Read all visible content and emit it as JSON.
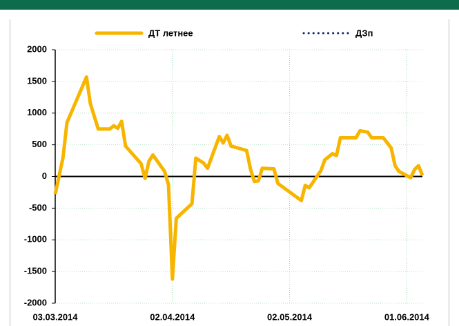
{
  "chart_data": {
    "type": "line",
    "x": [
      "03.03.2014",
      "05.03.2014",
      "06.03.2014",
      "11.03.2014",
      "12.03.2014",
      "14.03.2014",
      "17.03.2014",
      "18.03.2014",
      "19.03.2014",
      "20.03.2014",
      "21.03.2014",
      "25.03.2014",
      "26.03.2014",
      "27.03.2014",
      "28.03.2014",
      "31.03.2014",
      "01.04.2014",
      "02.04.2014",
      "03.04.2014",
      "07.04.2014",
      "08.04.2014",
      "10.04.2014",
      "11.04.2014",
      "14.04.2014",
      "15.04.2014",
      "16.04.2014",
      "17.04.2014",
      "21.04.2014",
      "22.04.2014",
      "23.04.2014",
      "24.04.2014",
      "25.04.2014",
      "28.04.2014",
      "29.04.2014",
      "05.05.2014",
      "06.05.2014",
      "07.05.2014",
      "10.05.2014",
      "11.05.2014",
      "13.05.2014",
      "14.05.2014",
      "15.05.2014",
      "19.05.2014",
      "20.05.2014",
      "22.05.2014",
      "23.05.2014",
      "26.05.2014",
      "28.05.2014",
      "29.05.2014",
      "30.05.2014",
      "02.06.2014",
      "03.06.2014",
      "04.06.2014",
      "05.06.2014"
    ],
    "series": [
      {
        "name": "ДТ летнее",
        "color": "#f7b500",
        "style": "solid",
        "values": [
          -280,
          300,
          850,
          1570,
          1150,
          750,
          750,
          800,
          760,
          870,
          480,
          200,
          -30,
          240,
          340,
          80,
          -130,
          -1620,
          -660,
          -430,
          290,
          210,
          130,
          630,
          530,
          650,
          480,
          410,
          110,
          -80,
          -70,
          130,
          120,
          -110,
          -380,
          -140,
          -180,
          90,
          260,
          360,
          330,
          610,
          610,
          720,
          700,
          610,
          610,
          450,
          170,
          80,
          -20,
          110,
          170,
          20
        ]
      },
      {
        "name": "ДЗп",
        "color": "#0b2a6b",
        "style": "dotted",
        "values": [
          null,
          null,
          null,
          null,
          null,
          null,
          null,
          null,
          null,
          null,
          null,
          null,
          null,
          null,
          null,
          null,
          null,
          null,
          null,
          null,
          null,
          null,
          null,
          null,
          null,
          null,
          null,
          null,
          null,
          null,
          null,
          null,
          null,
          null,
          null,
          null,
          null,
          null,
          null,
          null,
          null,
          null,
          null,
          null,
          null,
          null,
          null,
          null,
          null,
          null,
          null,
          null,
          null,
          null
        ]
      }
    ],
    "xlim": [
      "03.03.2014",
      "05.06.2014"
    ],
    "xticks": [
      "03.03.2014",
      "02.04.2014",
      "02.05.2014",
      "01.06.2014"
    ],
    "ylim": [
      -2000,
      2000
    ],
    "yticks": [
      -2000,
      -1500,
      -1000,
      -500,
      0,
      500,
      1000,
      1500,
      2000
    ],
    "grid": true,
    "legend": "top"
  }
}
